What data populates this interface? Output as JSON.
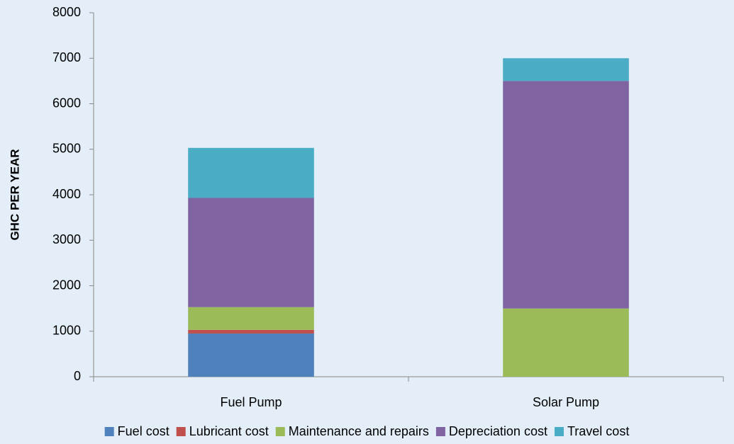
{
  "chart_data": {
    "type": "stacked_bar",
    "y_label": "GHC PER YEAR",
    "categories": [
      "Fuel Pump",
      "Solar Pump"
    ],
    "series": [
      {
        "name": "Fuel cost",
        "color": "#4f81bd",
        "values": [
          950,
          0
        ]
      },
      {
        "name": "Lubricant cost",
        "color": "#c0504d",
        "values": [
          80,
          0
        ]
      },
      {
        "name": "Maintenance and repairs",
        "color": "#9bbb59",
        "values": [
          500,
          1500
        ]
      },
      {
        "name": "Depreciation cost",
        "color": "#8064a2",
        "values": [
          2400,
          5000
        ]
      },
      {
        "name": "Travel cost",
        "color": "#4bacc6",
        "values": [
          1100,
          500
        ]
      }
    ],
    "ylim": [
      0,
      8000
    ],
    "yticks": [
      0,
      1000,
      2000,
      3000,
      4000,
      5000,
      6000,
      7000,
      8000
    ],
    "grid": false,
    "legend": "bottom"
  }
}
